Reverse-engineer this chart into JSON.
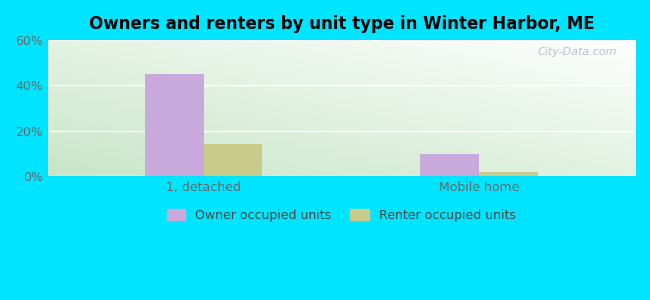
{
  "title": "Owners and renters by unit type in Winter Harbor, ME",
  "categories": [
    "1, detached",
    "Mobile home"
  ],
  "owner_values": [
    45.0,
    10.0
  ],
  "renter_values": [
    14.0,
    2.0
  ],
  "owner_color": "#c9a8dc",
  "renter_color": "#c8cc8a",
  "ylim": [
    0,
    60
  ],
  "yticks": [
    0,
    20,
    40,
    60
  ],
  "ytick_labels": [
    "0%",
    "20%",
    "40%",
    "60%"
  ],
  "background_outer": "#00e5ff",
  "legend_owner": "Owner occupied units",
  "legend_renter": "Renter occupied units",
  "bar_width": 0.32,
  "watermark": "City-Data.com",
  "group_positions": [
    0.75,
    2.25
  ]
}
